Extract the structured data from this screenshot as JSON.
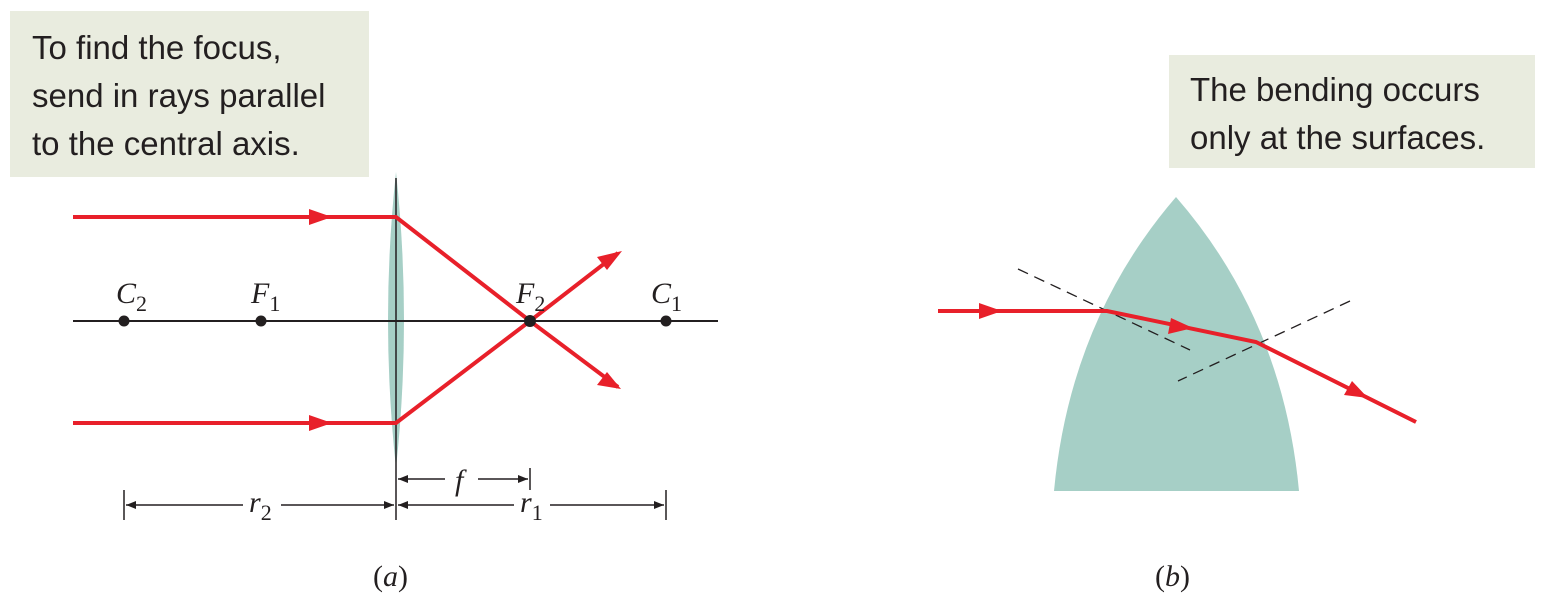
{
  "panel_a": {
    "note": {
      "lines": [
        "To find the focus,",
        "send in rays parallel",
        "to the central axis."
      ]
    },
    "points": {
      "c2": {
        "main": "C",
        "sub": "2"
      },
      "f1": {
        "main": "F",
        "sub": "1"
      },
      "f2": {
        "main": "F",
        "sub": "2"
      },
      "c1": {
        "main": "C",
        "sub": "1"
      }
    },
    "dimensions": {
      "f": "f",
      "r2": {
        "main": "r",
        "sub": "2"
      },
      "r1": {
        "main": "r",
        "sub": "1"
      }
    },
    "caption": {
      "open": "(",
      "letter": "a",
      "close": ")"
    }
  },
  "panel_b": {
    "note": {
      "lines": [
        "The bending occurs",
        "only at the surfaces."
      ]
    },
    "caption": {
      "open": "(",
      "letter": "b",
      "close": ")"
    }
  },
  "colors": {
    "ray": "#e8202a",
    "lens": "#a6cfc6",
    "note_bg": "#e9ecdf",
    "ink": "#231f20"
  }
}
